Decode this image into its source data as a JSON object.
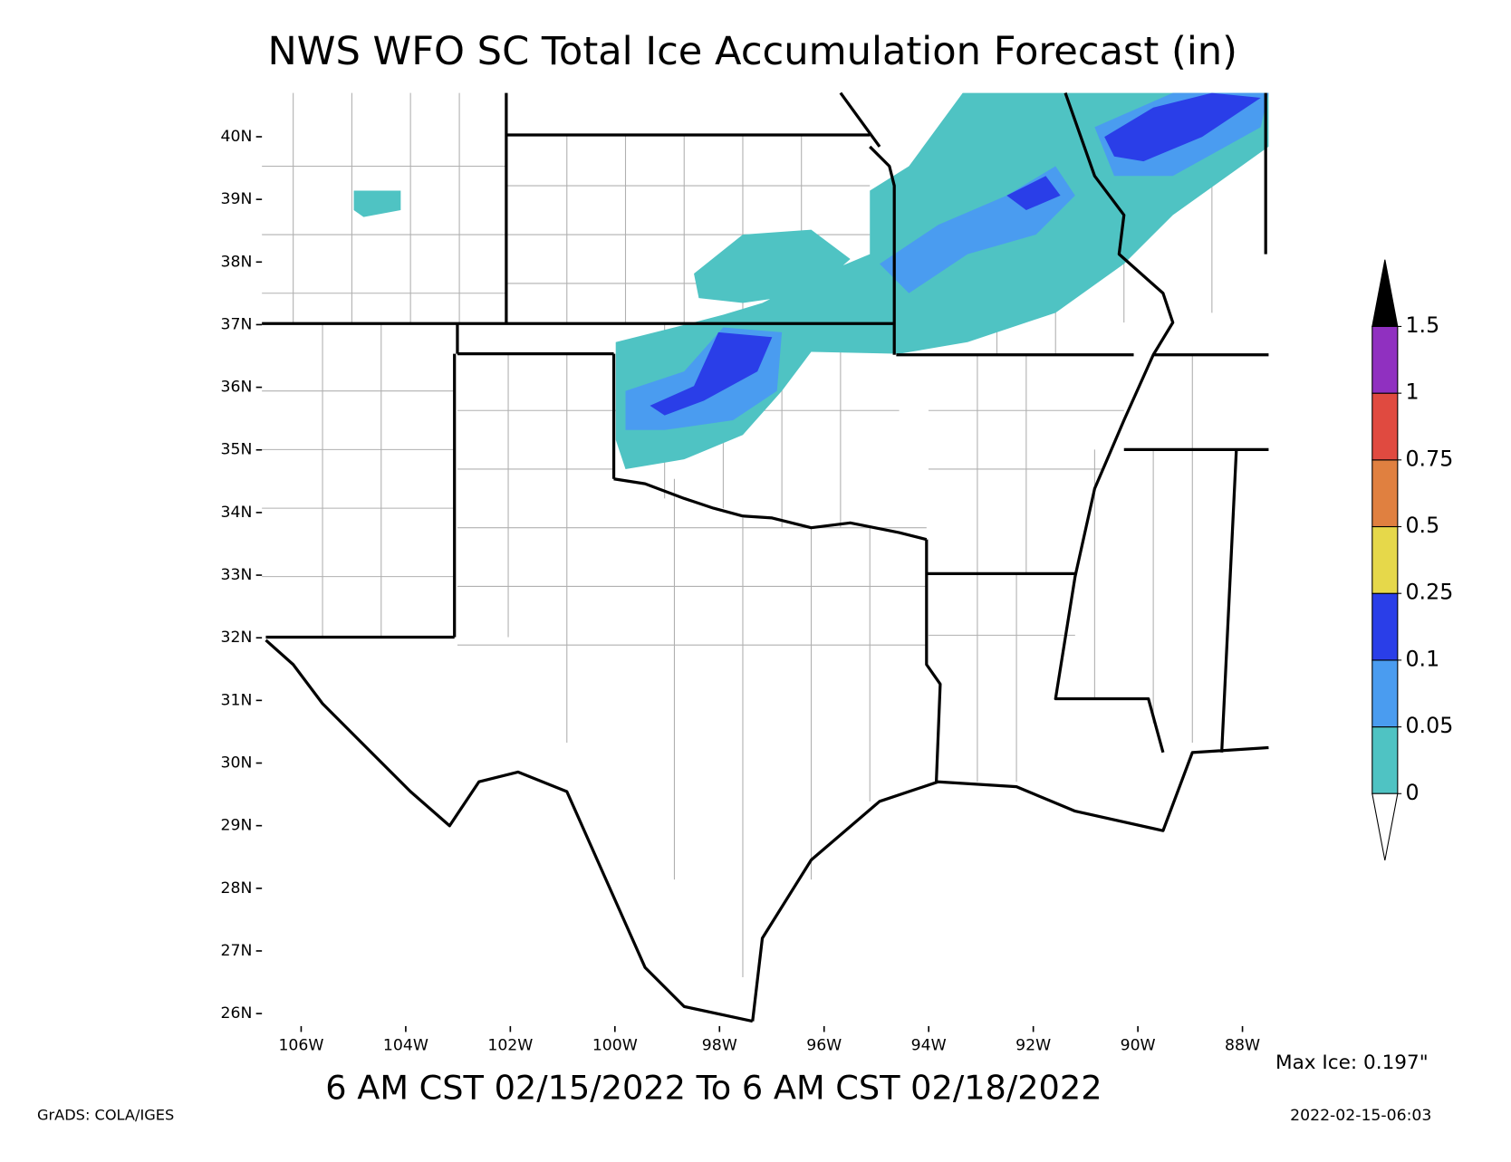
{
  "title": "NWS WFO SC Total Ice Accumulation Forecast (in)",
  "map": {
    "xlim": [
      -106.75,
      -87.5
    ],
    "ylim": [
      25.8,
      40.7
    ],
    "xticks": [
      {
        "value": -106,
        "label": "106W"
      },
      {
        "value": -104,
        "label": "104W"
      },
      {
        "value": -102,
        "label": "102W"
      },
      {
        "value": -100,
        "label": "100W"
      },
      {
        "value": -98,
        "label": "98W"
      },
      {
        "value": -96,
        "label": "96W"
      },
      {
        "value": -94,
        "label": "94W"
      },
      {
        "value": -92,
        "label": "92W"
      },
      {
        "value": -90,
        "label": "90W"
      },
      {
        "value": -88,
        "label": "88W"
      }
    ],
    "yticks": [
      {
        "value": 26,
        "label": "26N"
      },
      {
        "value": 27,
        "label": "27N"
      },
      {
        "value": 28,
        "label": "28N"
      },
      {
        "value": 29,
        "label": "29N"
      },
      {
        "value": 30,
        "label": "30N"
      },
      {
        "value": 31,
        "label": "31N"
      },
      {
        "value": 32,
        "label": "32N"
      },
      {
        "value": 33,
        "label": "33N"
      },
      {
        "value": 34,
        "label": "34N"
      },
      {
        "value": 35,
        "label": "35N"
      },
      {
        "value": 36,
        "label": "36N"
      },
      {
        "value": 37,
        "label": "37N"
      },
      {
        "value": 38,
        "label": "38N"
      },
      {
        "value": 39,
        "label": "39N"
      },
      {
        "value": 40,
        "label": "40N"
      }
    ]
  },
  "colorbar": {
    "levels": [
      0,
      0.05,
      0.1,
      0.25,
      0.5,
      0.75,
      1,
      1.5
    ],
    "colors": [
      "#4fc3c3",
      "#4a9cf0",
      "#2a3ee8",
      "#e6d84a",
      "#e08040",
      "#e04a40",
      "#9030c0"
    ],
    "over_color": "#000000",
    "under_color": "#ffffff"
  },
  "subtitle": "6 AM CST 02/15/2022 To 6 AM CST 02/18/2022",
  "max_ice": "Max Ice: 0.197\"",
  "footer_left": "GrADS: COLA/IGES",
  "footer_right": "2022-02-15-06:03"
}
